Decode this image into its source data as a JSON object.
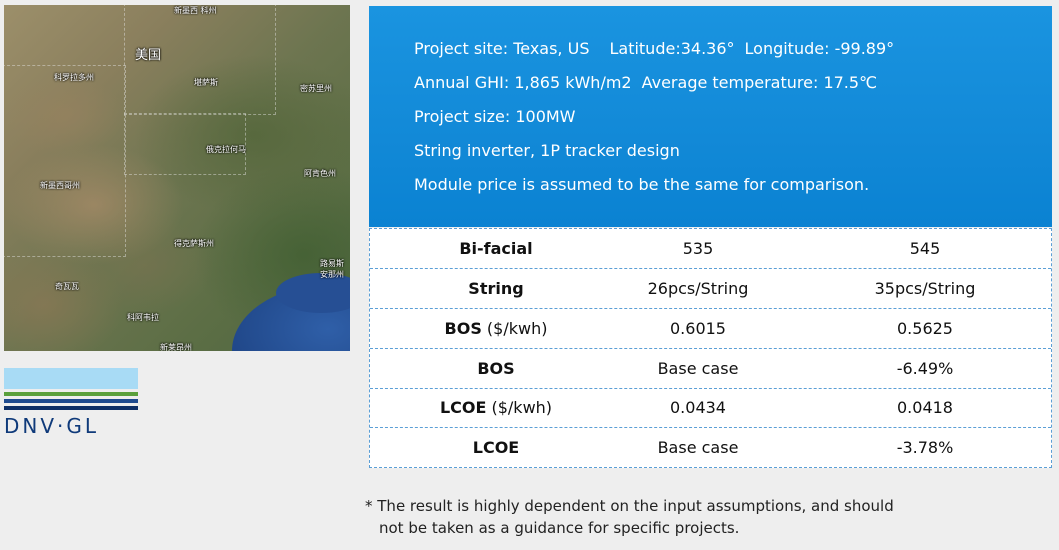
{
  "map": {
    "labels": {
      "top": "新墨西\n科州",
      "usa": "美国",
      "kansas_area": "科罗拉多州",
      "kansas": "堪萨斯",
      "missouri": "密苏里州",
      "oklahoma": "俄克拉何马",
      "arkansas": "阿肯色州",
      "new_mexico": "新墨西哥州",
      "texas": "得克萨斯州",
      "louisiana": "路易斯安那州",
      "chihuahua": "奇瓦瓦",
      "coahuila": "科阿韦拉",
      "nuevo_leon": "新莱昂州"
    }
  },
  "logo": {
    "text": "DNV·GL"
  },
  "info": {
    "site": "Project site: Texas, US",
    "latitude": "Latitude:34.36°",
    "longitude": "Longitude: -99.89°",
    "ghi": "Annual GHI: 1,865 kWh/m2",
    "temperature": "Average temperature: 17.5℃",
    "size": "Project size: 100MW",
    "design": "String inverter, 1P tracker design",
    "module": "Module price is assumed to be the same for comparison."
  },
  "table": {
    "rows": [
      {
        "label": "Bi-facial",
        "unit": "",
        "a": "535",
        "b": "545"
      },
      {
        "label": "String",
        "unit": "",
        "a": "26pcs/String",
        "b": "35pcs/String"
      },
      {
        "label": "BOS",
        "unit": " ($/kwh)",
        "a": "0.6015",
        "b": "0.5625"
      },
      {
        "label": "BOS",
        "unit": "",
        "a": "Base case",
        "b": "-6.49%"
      },
      {
        "label": "LCOE",
        "unit": " ($/kwh)",
        "a": "0.0434",
        "b": "0.0418"
      },
      {
        "label": "LCOE",
        "unit": "",
        "a": "Base case",
        "b": "-3.78%"
      }
    ]
  },
  "footnote": {
    "line1": "* The result is highly dependent on the input assumptions, and should",
    "line2": "not be taken as a guidance for specific projects."
  },
  "colors": {
    "panel_blue": "#1289d7",
    "table_border": "#5b9fd6",
    "logo_light": "#a8dbf5",
    "logo_green": "#5aa03c",
    "logo_navy": "#0e2f66"
  }
}
